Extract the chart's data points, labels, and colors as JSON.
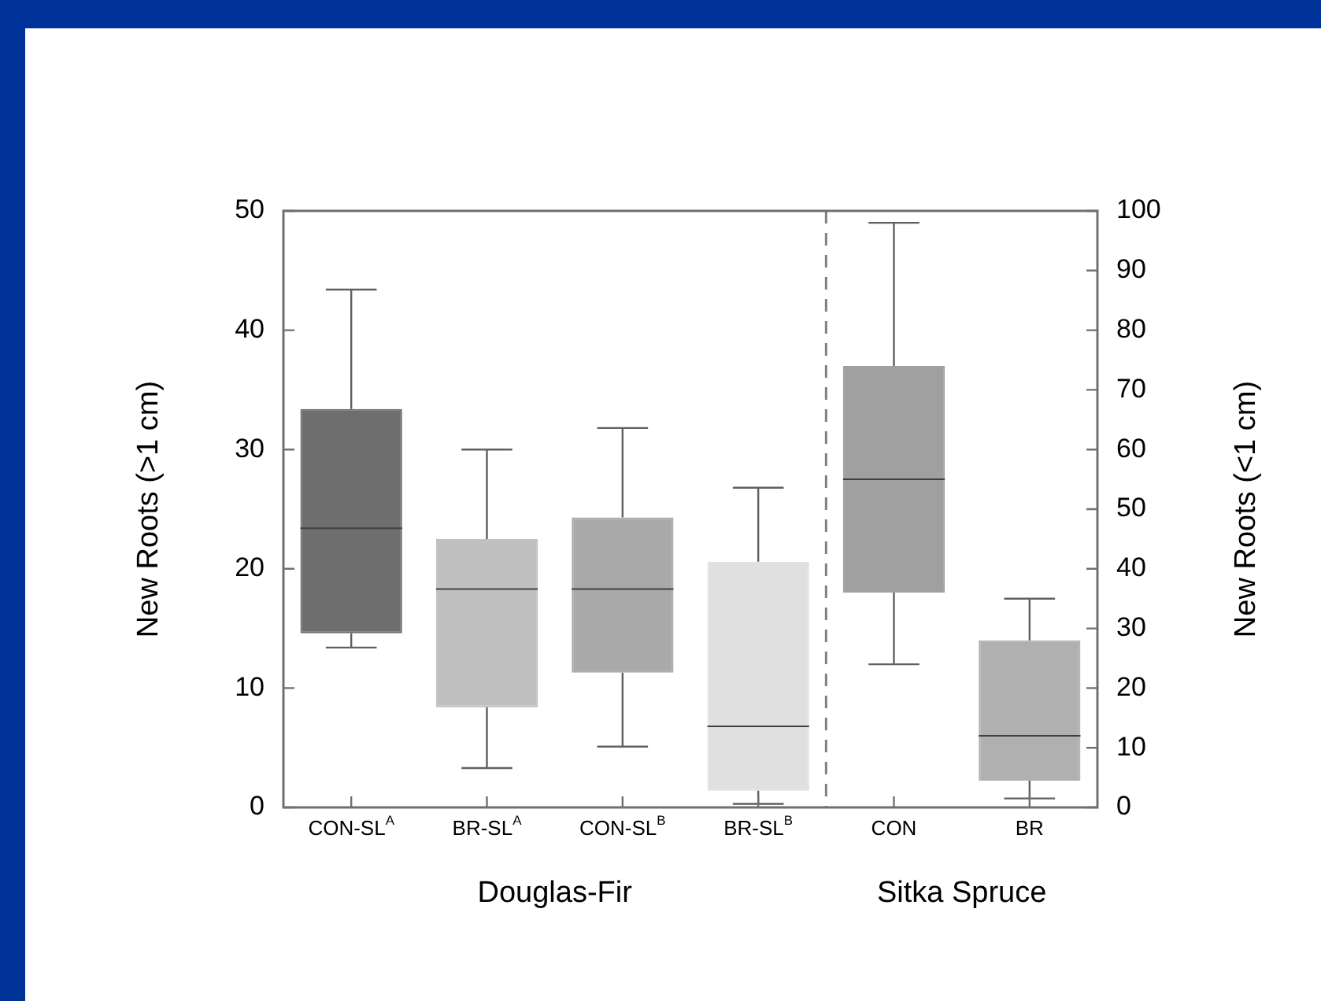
{
  "chart_data": {
    "type": "box",
    "categories": [
      "CON-SL$^{A}$",
      "BR-SL$^{A}$",
      "CON-SL$^{B}$",
      "BR-SL$^{B}$",
      "CON",
      "BR"
    ],
    "ylabel": "New Roots (>1 cm)",
    "y2label": "New Roots (<1 cm)",
    "ylim": [
      0,
      50
    ],
    "yticks": [
      0,
      10,
      20,
      30,
      40,
      50
    ],
    "y2lim": [
      0,
      100
    ],
    "y2ticks": [
      0,
      10,
      20,
      30,
      40,
      50,
      60,
      70,
      80,
      90,
      100
    ],
    "grid": false,
    "legend": false,
    "annotations": [
      "Douglas-Fir",
      "Sitka Spruce"
    ],
    "series": [
      {
        "colors": [
          "#6e6e6e",
          "#c0c0c0",
          "#a9a9a9",
          "#e0e0e0",
          null,
          null
        ],
        "boxes": [
          {
            "low": 13.4,
            "q1": 14.6,
            "median": 23.4,
            "q3": 33.4,
            "high": 43.4
          },
          {
            "low": 3.3,
            "q1": 8.4,
            "median": 18.3,
            "q3": 22.5,
            "high": 30
          },
          {
            "low": 5.1,
            "q1": 11.3,
            "median": 18.3,
            "q3": 24.3,
            "high": 31.8
          },
          {
            "low": 0.3,
            "q1": 1.4,
            "median": 6.8,
            "q3": 20.6,
            "high": 26.8
          },
          null,
          null
        ]
      },
      {
        "axis": "y2",
        "colors": [
          null,
          null,
          null,
          null,
          "#a0a0a0",
          "#b0b0b0"
        ],
        "boxes": [
          null,
          null,
          null,
          null,
          {
            "low": 24,
            "q1": 36,
            "median": 55,
            "q3": 74,
            "high": 98
          },
          {
            "low": 1.5,
            "q1": 4.5,
            "median": 12,
            "q3": 28,
            "high": 35
          }
        ]
      }
    ]
  }
}
